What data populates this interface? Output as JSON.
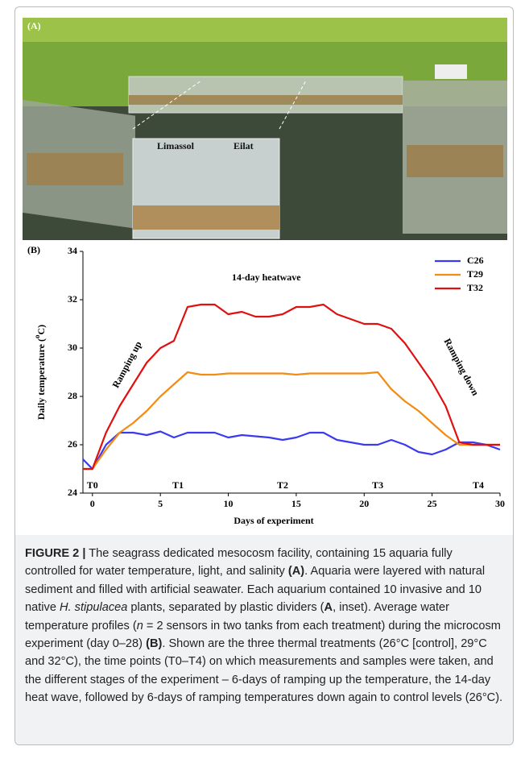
{
  "photo": {
    "labels": [
      "(A)",
      "Limassol",
      "Eilat"
    ]
  },
  "chart_data": {
    "type": "line",
    "panel_label": "(B)",
    "ylabel_parts": [
      "Daily temperature (",
      "o",
      "C)"
    ],
    "xlabel": "Days of experiment",
    "xlim": [
      -0.7,
      30
    ],
    "xticks": [
      0,
      5,
      10,
      15,
      20,
      25,
      30
    ],
    "ylim": [
      24,
      34
    ],
    "yticks": [
      24,
      26,
      28,
      30,
      32,
      34
    ],
    "legend": "upper right",
    "x": [
      -0.7,
      0,
      1,
      2,
      3,
      4,
      5,
      6,
      7,
      8,
      9,
      10,
      11,
      12,
      13,
      14,
      15,
      16,
      17,
      18,
      19,
      20,
      21,
      22,
      23,
      24,
      25,
      26,
      27,
      28,
      29,
      30
    ],
    "series": [
      {
        "name": "C26",
        "color": "#3a3af0",
        "values": [
          25.4,
          25.0,
          26.0,
          26.5,
          26.5,
          26.4,
          26.55,
          26.3,
          26.5,
          26.5,
          26.5,
          26.3,
          26.4,
          26.35,
          26.3,
          26.2,
          26.3,
          26.5,
          26.5,
          26.2,
          26.1,
          26.0,
          26.0,
          26.2,
          26.0,
          25.7,
          25.6,
          25.8,
          26.1,
          26.1,
          26.0,
          25.8
        ]
      },
      {
        "name": "T29",
        "color": "#f28c13",
        "values": [
          25.0,
          25.0,
          25.8,
          26.5,
          26.9,
          27.4,
          28.0,
          28.5,
          29.0,
          28.9,
          28.9,
          28.95,
          28.95,
          28.95,
          28.95,
          28.95,
          28.9,
          28.95,
          28.95,
          28.95,
          28.95,
          28.95,
          29.0,
          28.3,
          27.8,
          27.4,
          26.9,
          26.4,
          26.0,
          26.0,
          26.0,
          26.0
        ]
      },
      {
        "name": "T32",
        "color": "#e01010",
        "values": [
          25.0,
          25.0,
          26.5,
          27.6,
          28.5,
          29.4,
          30.0,
          30.3,
          31.7,
          31.8,
          31.8,
          31.4,
          31.5,
          31.3,
          31.3,
          31.4,
          31.7,
          31.7,
          31.8,
          31.4,
          31.2,
          31.0,
          31.0,
          30.8,
          30.2,
          29.4,
          28.6,
          27.6,
          26.1,
          26.0,
          26.0,
          26.0
        ]
      }
    ],
    "annotations": [
      "14-day heatwave",
      "Ramping up",
      "Ramping down"
    ],
    "time_points": [
      "T0",
      "T1",
      "T2",
      "T3",
      "T4"
    ]
  },
  "caption": {
    "label": "FIGURE 2 |",
    "parts": [
      {
        "text": " The seagrass dedicated mesocosm facility, containing 15 aquaria fully controlled for water temperature, light, and salinity ",
        "style": "normal"
      },
      {
        "text": "(A)",
        "style": "bold"
      },
      {
        "text": ". Aquaria were layered with natural sediment and filled with artificial seawater. Each aquarium contained 10 invasive and 10 native ",
        "style": "normal"
      },
      {
        "text": "H. stipulacea",
        "style": "italic"
      },
      {
        "text": " plants, separated by plastic dividers (",
        "style": "normal"
      },
      {
        "text": "A",
        "style": "bold"
      },
      {
        "text": ", inset). Average water temperature profiles (",
        "style": "normal"
      },
      {
        "text": "n",
        "style": "italic"
      },
      {
        "text": " = 2 sensors in two tanks from each treatment) during the microcosm experiment (day 0–28) ",
        "style": "normal"
      },
      {
        "text": "(B)",
        "style": "bold"
      },
      {
        "text": ". Shown are the three thermal treatments (26°C [control], 29°C and 32°C), the time points (T0–T4) on which measurements and samples were taken, and the different stages of the experiment – 6-days of ramping up the temperature, the 14-day heat wave, followed by 6-days of ramping temperatures down again to control levels (26°C).",
        "style": "normal"
      }
    ]
  }
}
